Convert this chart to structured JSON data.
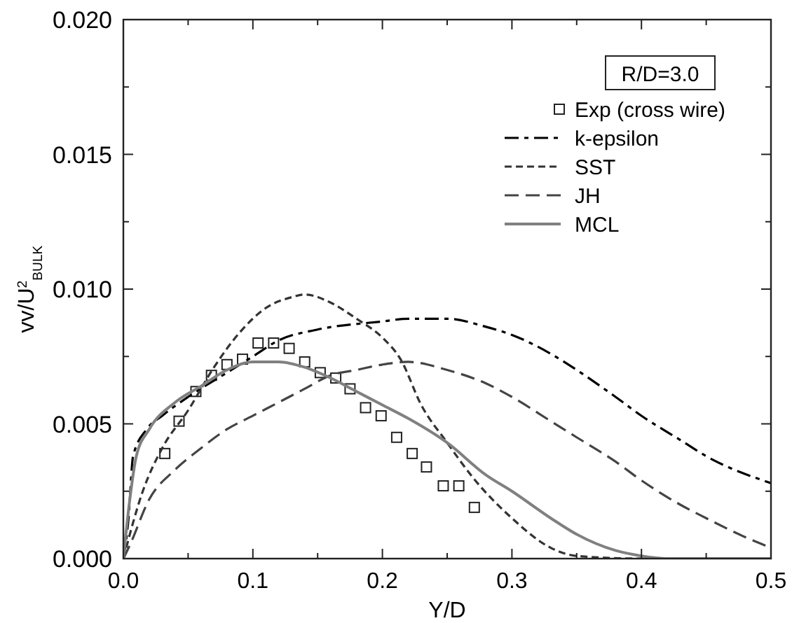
{
  "chart_data": {
    "type": "line",
    "xlabel": "Y/D",
    "ylabel": "vv/U$^{2}$$_{BULK}$",
    "annotations": [
      "R/D=3.0"
    ],
    "xlim": [
      0,
      0.5
    ],
    "ylim": [
      0,
      0.02
    ],
    "xticks": [
      {
        "value": 0,
        "label": "0.0"
      },
      {
        "value": 0.05,
        "label": null
      },
      {
        "value": 0.1,
        "label": "0.1"
      },
      {
        "value": 0.15,
        "label": null
      },
      {
        "value": 0.2,
        "label": "0.2"
      },
      {
        "value": 0.25,
        "label": null
      },
      {
        "value": 0.3,
        "label": "0.3"
      },
      {
        "value": 0.35,
        "label": null
      },
      {
        "value": 0.4,
        "label": "0.4"
      },
      {
        "value": 0.45,
        "label": null
      },
      {
        "value": 0.5,
        "label": "0.5"
      }
    ],
    "yticks": [
      {
        "value": 0,
        "label": "0.000"
      },
      {
        "value": 0.0025,
        "label": null
      },
      {
        "value": 0.005,
        "label": "0.005"
      },
      {
        "value": 0.0075,
        "label": null
      },
      {
        "value": 0.01,
        "label": "0.010"
      },
      {
        "value": 0.0125,
        "label": null
      },
      {
        "value": 0.015,
        "label": "0.015"
      },
      {
        "value": 0.0175,
        "label": null
      },
      {
        "value": 0.02,
        "label": "0.020"
      }
    ],
    "grid": false,
    "legend": "top right",
    "series": [
      {
        "name": "Exp (cross wire)",
        "type": "scatter",
        "marker": "square",
        "color": "#222222",
        "x": [
          0.032,
          0.043,
          0.056,
          0.068,
          0.08,
          0.092,
          0.104,
          0.116,
          0.128,
          0.14,
          0.152,
          0.164,
          0.175,
          0.187,
          0.199,
          0.211,
          0.223,
          0.234,
          0.247,
          0.259,
          0.271
        ],
        "values": [
          0.0039,
          0.0051,
          0.0062,
          0.0068,
          0.0072,
          0.0074,
          0.008,
          0.008,
          0.0078,
          0.0073,
          0.0069,
          0.0067,
          0.0063,
          0.0056,
          0.0053,
          0.0045,
          0.0039,
          0.0034,
          0.0027,
          0.0027,
          0.0019
        ]
      },
      {
        "name": "k-epsilon",
        "line_style": "dashdot",
        "color": "#000000",
        "x": [
          0,
          0.004,
          0.0075,
          0.018,
          0.03,
          0.05,
          0.08,
          0.1,
          0.12,
          0.15,
          0.2,
          0.22,
          0.25,
          0.28,
          0.3,
          0.33,
          0.35,
          0.38,
          0.4,
          0.43,
          0.45,
          0.5
        ],
        "values": [
          0,
          0.0015,
          0.0038,
          0.0048,
          0.0053,
          0.006,
          0.0069,
          0.0075,
          0.0081,
          0.0085,
          0.0088,
          0.0089,
          0.0089,
          0.0086,
          0.0083,
          0.0076,
          0.007,
          0.006,
          0.0053,
          0.0044,
          0.0038,
          0.0028
        ]
      },
      {
        "name": "SST",
        "line_style": "dashed",
        "color": "#333333",
        "x": [
          0,
          0.015,
          0.03,
          0.05,
          0.07,
          0.09,
          0.11,
          0.13,
          0.14,
          0.16,
          0.18,
          0.2,
          0.214,
          0.23,
          0.25,
          0.27,
          0.3,
          0.33,
          0.35,
          0.4,
          0.5
        ],
        "values": [
          0,
          0.0025,
          0.0041,
          0.0055,
          0.0071,
          0.0084,
          0.0093,
          0.0097,
          0.0098,
          0.0095,
          0.0089,
          0.0082,
          0.0074,
          0.0057,
          0.0043,
          0.003,
          0.0015,
          0.0004,
          0.0001,
          0,
          0
        ]
      },
      {
        "name": "JH",
        "line_style": "longdash",
        "color": "#444444",
        "x": [
          0,
          0.005,
          0.02,
          0.04,
          0.06,
          0.08,
          0.1,
          0.12,
          0.14,
          0.16,
          0.18,
          0.2,
          0.22,
          0.25,
          0.28,
          0.3,
          0.33,
          0.35,
          0.38,
          0.4,
          0.43,
          0.45,
          0.48,
          0.5
        ],
        "values": [
          0,
          0.0005,
          0.0022,
          0.0033,
          0.0041,
          0.0048,
          0.0053,
          0.0058,
          0.0063,
          0.0068,
          0.007,
          0.0072,
          0.0073,
          0.007,
          0.0065,
          0.006,
          0.0051,
          0.0045,
          0.0036,
          0.0029,
          0.002,
          0.0015,
          0.0008,
          0.0004
        ]
      },
      {
        "name": "MCL",
        "line_style": "solid",
        "color": "#808080",
        "x": [
          0,
          0.005,
          0.01,
          0.02,
          0.04,
          0.06,
          0.08,
          0.1,
          0.12,
          0.14,
          0.16,
          0.18,
          0.2,
          0.22,
          0.25,
          0.28,
          0.3,
          0.33,
          0.35,
          0.38,
          0.4,
          0.42,
          0.5
        ],
        "values": [
          0,
          0.0022,
          0.0038,
          0.0048,
          0.0058,
          0.0064,
          0.007,
          0.0073,
          0.0073,
          0.0071,
          0.0067,
          0.0062,
          0.0057,
          0.0052,
          0.0043,
          0.0031,
          0.0025,
          0.0015,
          0.0009,
          0.0003,
          0.0001,
          0,
          0
        ]
      }
    ]
  }
}
